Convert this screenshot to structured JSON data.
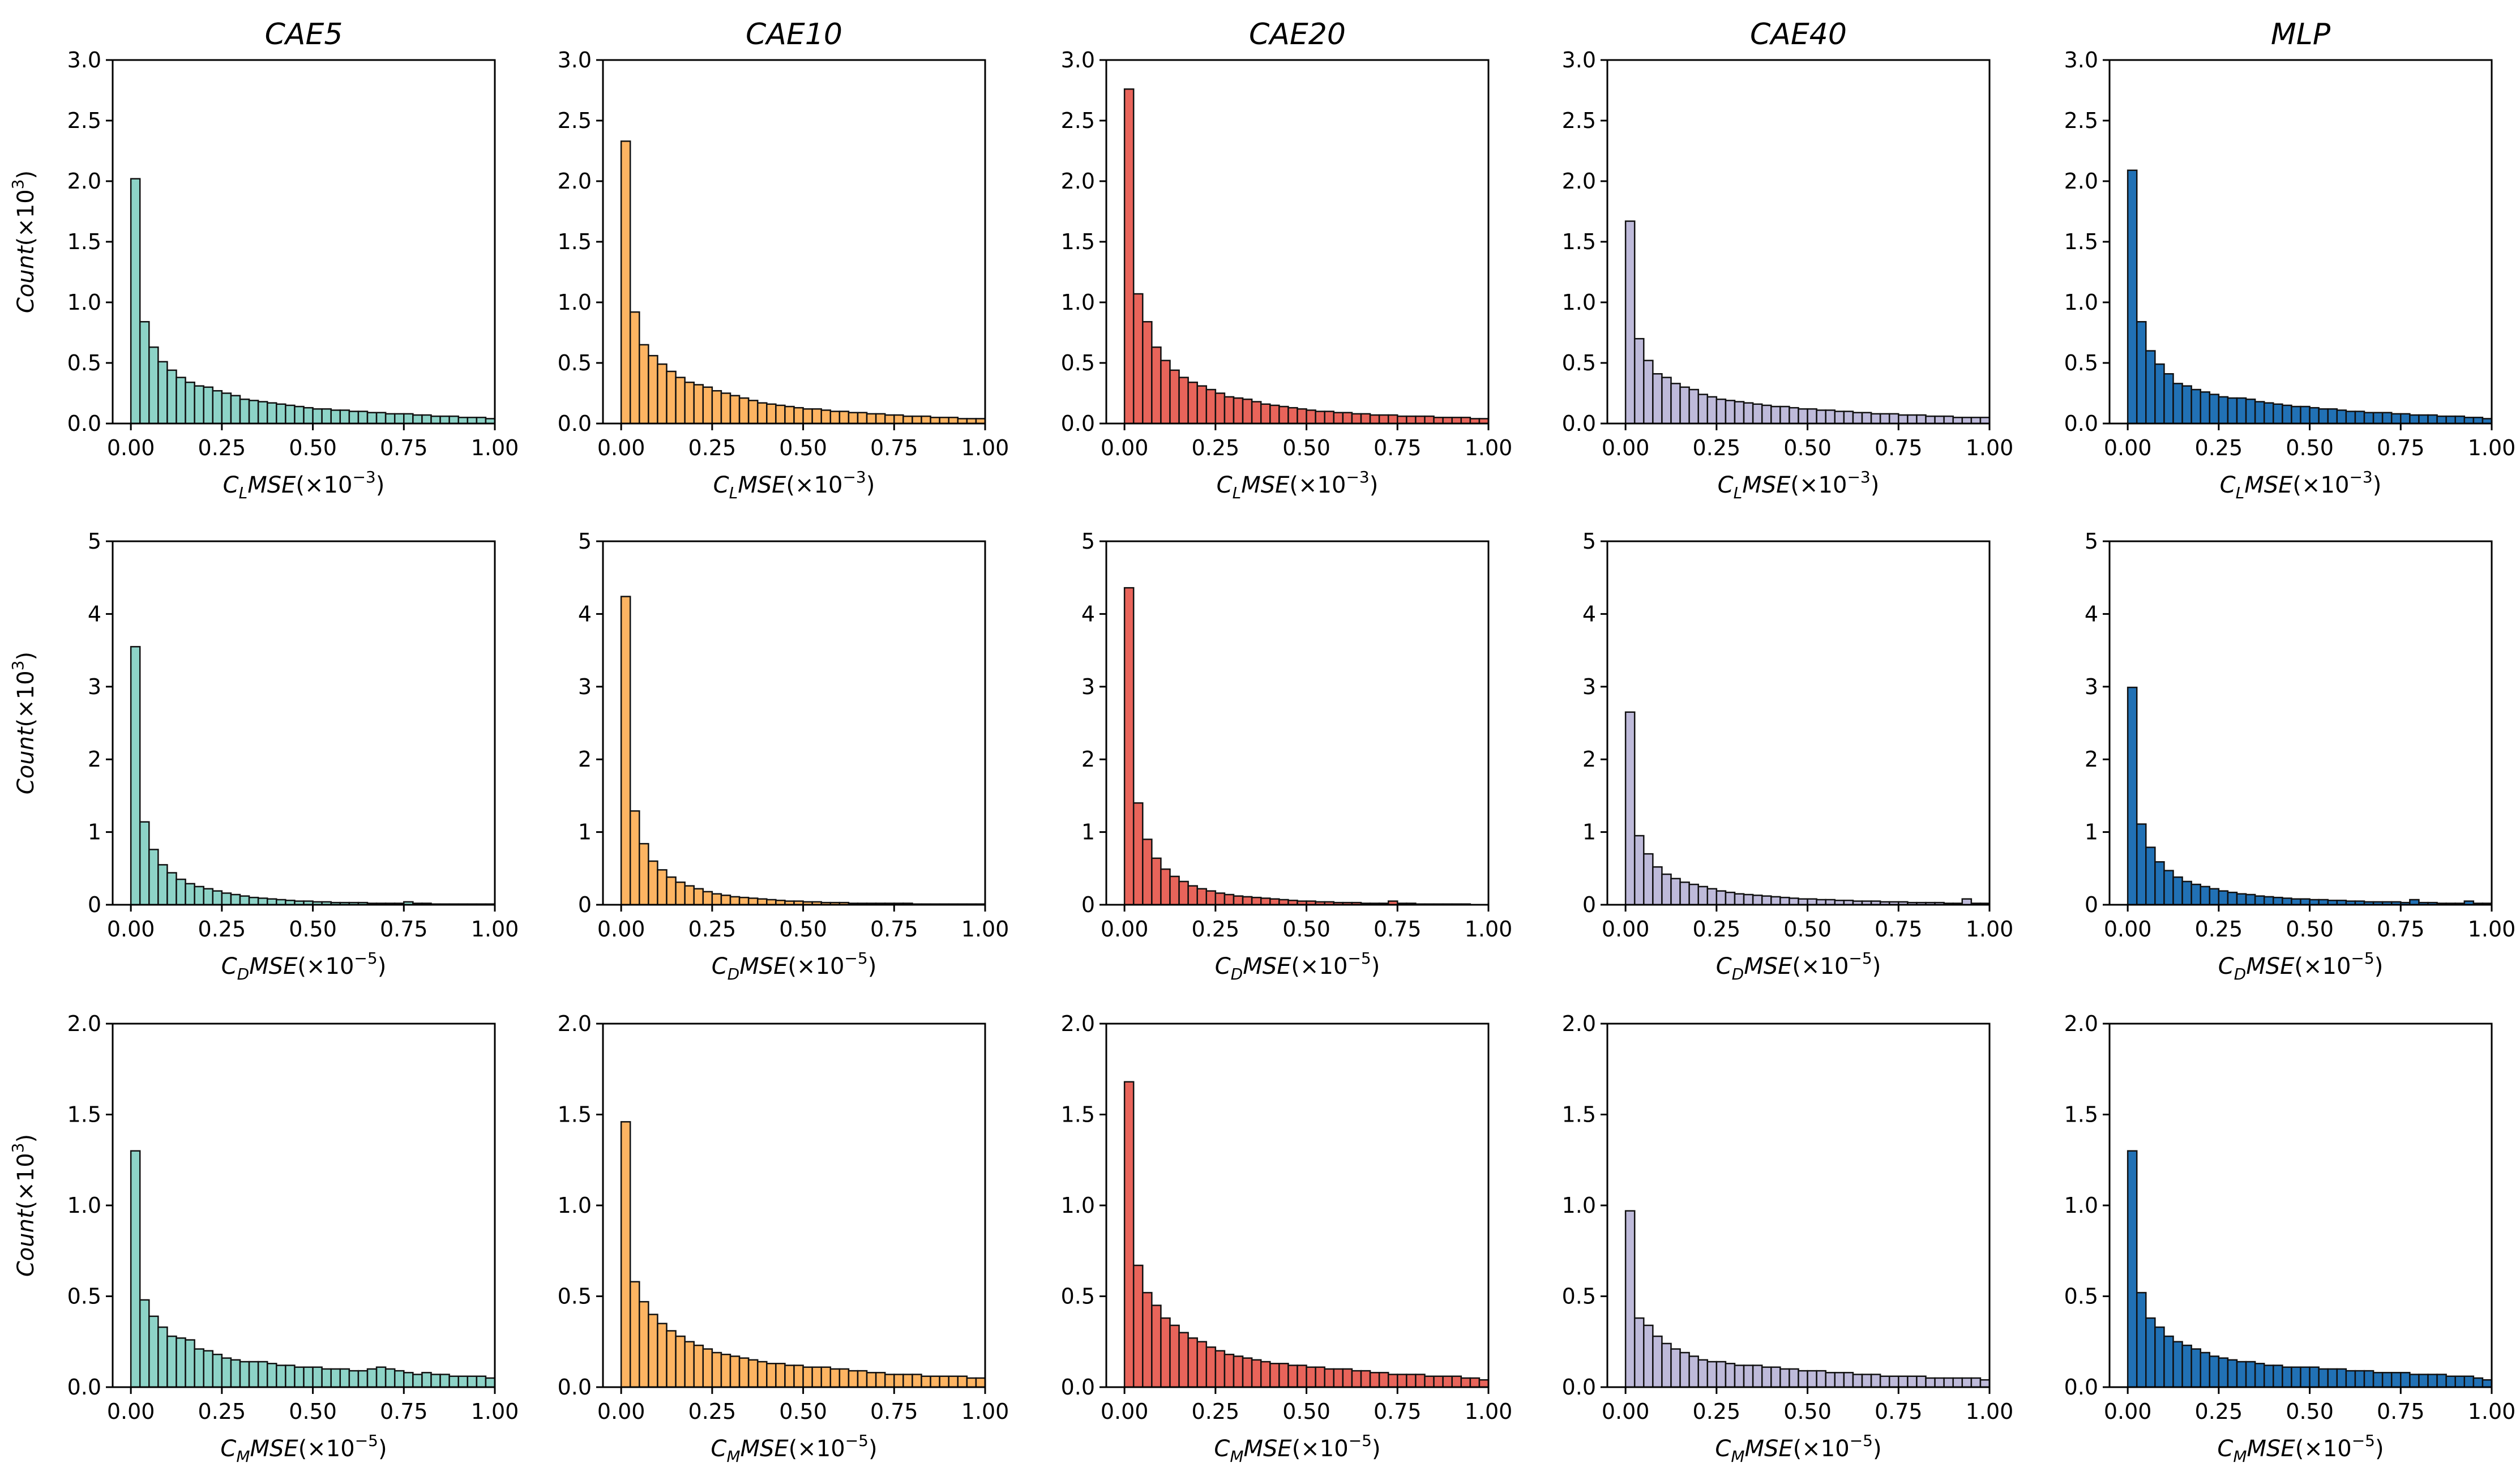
{
  "chart_data": {
    "type": "bar",
    "layout": "grid 3 rows x 5 columns of histograms",
    "columns": [
      {
        "title": "CAE5",
        "color": "#8dd3c7"
      },
      {
        "title": "CAE10",
        "color": "#fdb462"
      },
      {
        "title": "CAE20",
        "color": "#e8645a"
      },
      {
        "title": "CAE40",
        "color": "#bebada"
      },
      {
        "title": "MLP",
        "color": "#2171b5"
      }
    ],
    "rows": [
      {
        "ylabel_base": "Count(",
        "ylabel_exp": "3",
        "xlabel_var": "C",
        "xlabel_sub": "L",
        "xlabel_rest": "MSE(×10",
        "xlabel_exp": "−3",
        "ylim": [
          0,
          3
        ],
        "yticks": [
          "0.0",
          "0.5",
          "1.0",
          "1.5",
          "2.0",
          "2.5",
          "3.0"
        ],
        "xticks": [
          "0.00",
          "0.25",
          "0.50",
          "0.75",
          "1.00"
        ],
        "xlim": [
          -0.05,
          1.0
        ],
        "bins": 40,
        "series": [
          [
            2.02,
            0.84,
            0.63,
            0.51,
            0.44,
            0.38,
            0.34,
            0.31,
            0.3,
            0.27,
            0.25,
            0.23,
            0.2,
            0.19,
            0.18,
            0.17,
            0.16,
            0.15,
            0.14,
            0.13,
            0.12,
            0.12,
            0.11,
            0.11,
            0.1,
            0.1,
            0.09,
            0.09,
            0.08,
            0.08,
            0.08,
            0.07,
            0.07,
            0.06,
            0.06,
            0.06,
            0.05,
            0.05,
            0.05,
            0.04
          ],
          [
            2.33,
            0.92,
            0.65,
            0.56,
            0.49,
            0.43,
            0.38,
            0.34,
            0.32,
            0.3,
            0.27,
            0.25,
            0.23,
            0.21,
            0.19,
            0.17,
            0.16,
            0.15,
            0.14,
            0.13,
            0.12,
            0.12,
            0.11,
            0.1,
            0.1,
            0.09,
            0.09,
            0.08,
            0.08,
            0.07,
            0.07,
            0.06,
            0.06,
            0.06,
            0.05,
            0.05,
            0.05,
            0.04,
            0.04,
            0.04
          ],
          [
            2.76,
            1.07,
            0.84,
            0.63,
            0.52,
            0.44,
            0.38,
            0.34,
            0.31,
            0.28,
            0.25,
            0.22,
            0.21,
            0.2,
            0.18,
            0.16,
            0.15,
            0.14,
            0.13,
            0.12,
            0.11,
            0.1,
            0.1,
            0.09,
            0.09,
            0.08,
            0.08,
            0.07,
            0.07,
            0.07,
            0.06,
            0.06,
            0.06,
            0.06,
            0.05,
            0.05,
            0.05,
            0.05,
            0.04,
            0.04
          ],
          [
            1.67,
            0.7,
            0.52,
            0.41,
            0.38,
            0.33,
            0.3,
            0.28,
            0.24,
            0.22,
            0.2,
            0.19,
            0.18,
            0.17,
            0.16,
            0.15,
            0.14,
            0.14,
            0.13,
            0.12,
            0.12,
            0.11,
            0.11,
            0.1,
            0.1,
            0.09,
            0.09,
            0.08,
            0.08,
            0.08,
            0.07,
            0.07,
            0.07,
            0.06,
            0.06,
            0.06,
            0.05,
            0.05,
            0.05,
            0.05
          ],
          [
            2.09,
            0.84,
            0.6,
            0.49,
            0.41,
            0.33,
            0.31,
            0.28,
            0.26,
            0.24,
            0.22,
            0.21,
            0.21,
            0.2,
            0.18,
            0.17,
            0.16,
            0.15,
            0.14,
            0.14,
            0.13,
            0.12,
            0.12,
            0.11,
            0.1,
            0.1,
            0.09,
            0.09,
            0.09,
            0.08,
            0.08,
            0.07,
            0.07,
            0.07,
            0.06,
            0.06,
            0.06,
            0.05,
            0.05,
            0.04
          ]
        ]
      },
      {
        "ylabel_base": "Count(",
        "ylabel_exp": "3",
        "xlabel_var": "C",
        "xlabel_sub": "D",
        "xlabel_rest": "MSE(×10",
        "xlabel_exp": "−5",
        "ylim": [
          0,
          5
        ],
        "yticks": [
          "0",
          "1",
          "2",
          "3",
          "4",
          "5"
        ],
        "xticks": [
          "0.00",
          "0.25",
          "0.50",
          "0.75",
          "1.00"
        ],
        "xlim": [
          -0.05,
          1.0
        ],
        "bins": 40,
        "series": [
          [
            3.55,
            1.14,
            0.76,
            0.55,
            0.44,
            0.35,
            0.29,
            0.25,
            0.22,
            0.19,
            0.16,
            0.14,
            0.12,
            0.1,
            0.09,
            0.08,
            0.07,
            0.06,
            0.05,
            0.05,
            0.04,
            0.04,
            0.03,
            0.03,
            0.03,
            0.03,
            0.02,
            0.02,
            0.02,
            0.02,
            0.04,
            0.02,
            0.02,
            0.01,
            0.01,
            0.01,
            0.01,
            0.01,
            0.01,
            0.01
          ],
          [
            4.24,
            1.29,
            0.84,
            0.6,
            0.48,
            0.38,
            0.31,
            0.26,
            0.22,
            0.18,
            0.15,
            0.13,
            0.11,
            0.1,
            0.09,
            0.08,
            0.07,
            0.06,
            0.05,
            0.05,
            0.04,
            0.04,
            0.03,
            0.03,
            0.03,
            0.02,
            0.02,
            0.02,
            0.02,
            0.02,
            0.02,
            0.02,
            0.01,
            0.01,
            0.01,
            0.01,
            0.01,
            0.01,
            0.01,
            0.01
          ],
          [
            4.36,
            1.4,
            0.9,
            0.64,
            0.49,
            0.39,
            0.32,
            0.26,
            0.22,
            0.19,
            0.16,
            0.14,
            0.12,
            0.11,
            0.1,
            0.09,
            0.08,
            0.07,
            0.06,
            0.05,
            0.05,
            0.04,
            0.04,
            0.03,
            0.03,
            0.03,
            0.02,
            0.02,
            0.02,
            0.05,
            0.02,
            0.02,
            0.01,
            0.01,
            0.01,
            0.01,
            0.01,
            0.01,
            0.0,
            0.0
          ],
          [
            2.65,
            0.95,
            0.7,
            0.52,
            0.42,
            0.36,
            0.31,
            0.28,
            0.25,
            0.22,
            0.19,
            0.17,
            0.15,
            0.14,
            0.13,
            0.12,
            0.11,
            0.1,
            0.09,
            0.08,
            0.08,
            0.07,
            0.07,
            0.06,
            0.06,
            0.05,
            0.05,
            0.05,
            0.04,
            0.04,
            0.04,
            0.03,
            0.03,
            0.03,
            0.03,
            0.02,
            0.02,
            0.08,
            0.02,
            0.02
          ],
          [
            2.99,
            1.11,
            0.79,
            0.59,
            0.47,
            0.38,
            0.32,
            0.28,
            0.25,
            0.22,
            0.19,
            0.17,
            0.15,
            0.14,
            0.12,
            0.11,
            0.1,
            0.09,
            0.08,
            0.08,
            0.07,
            0.07,
            0.06,
            0.06,
            0.05,
            0.05,
            0.04,
            0.04,
            0.04,
            0.04,
            0.03,
            0.07,
            0.03,
            0.03,
            0.02,
            0.02,
            0.02,
            0.05,
            0.02,
            0.02
          ]
        ]
      },
      {
        "ylabel_base": "Count(",
        "ylabel_exp": "3",
        "xlabel_var": "C",
        "xlabel_sub": "M",
        "xlabel_rest": "MSE(×10",
        "xlabel_exp": "−5",
        "ylim": [
          0,
          2
        ],
        "yticks": [
          "0.0",
          "0.5",
          "1.0",
          "1.5",
          "2.0"
        ],
        "xticks": [
          "0.00",
          "0.25",
          "0.50",
          "0.75",
          "1.00"
        ],
        "xlim": [
          -0.05,
          1.0
        ],
        "bins": 40,
        "series": [
          [
            1.3,
            0.48,
            0.39,
            0.33,
            0.28,
            0.27,
            0.26,
            0.21,
            0.2,
            0.18,
            0.16,
            0.15,
            0.14,
            0.14,
            0.14,
            0.13,
            0.12,
            0.12,
            0.11,
            0.11,
            0.11,
            0.1,
            0.1,
            0.1,
            0.09,
            0.09,
            0.1,
            0.11,
            0.1,
            0.09,
            0.08,
            0.07,
            0.08,
            0.07,
            0.07,
            0.06,
            0.06,
            0.06,
            0.06,
            0.05
          ],
          [
            1.46,
            0.58,
            0.47,
            0.4,
            0.35,
            0.31,
            0.28,
            0.25,
            0.23,
            0.21,
            0.19,
            0.18,
            0.17,
            0.16,
            0.15,
            0.14,
            0.13,
            0.13,
            0.12,
            0.12,
            0.11,
            0.11,
            0.11,
            0.1,
            0.1,
            0.09,
            0.09,
            0.08,
            0.08,
            0.07,
            0.07,
            0.07,
            0.07,
            0.06,
            0.06,
            0.06,
            0.06,
            0.06,
            0.05,
            0.05
          ],
          [
            1.68,
            0.67,
            0.52,
            0.45,
            0.38,
            0.34,
            0.3,
            0.27,
            0.25,
            0.22,
            0.2,
            0.18,
            0.17,
            0.16,
            0.15,
            0.14,
            0.13,
            0.13,
            0.12,
            0.12,
            0.11,
            0.11,
            0.1,
            0.1,
            0.1,
            0.09,
            0.09,
            0.08,
            0.08,
            0.07,
            0.07,
            0.07,
            0.07,
            0.06,
            0.06,
            0.06,
            0.06,
            0.05,
            0.05,
            0.04
          ],
          [
            0.97,
            0.38,
            0.34,
            0.28,
            0.24,
            0.21,
            0.19,
            0.17,
            0.15,
            0.14,
            0.14,
            0.13,
            0.12,
            0.12,
            0.12,
            0.11,
            0.11,
            0.1,
            0.1,
            0.09,
            0.09,
            0.09,
            0.08,
            0.08,
            0.08,
            0.07,
            0.07,
            0.07,
            0.06,
            0.06,
            0.06,
            0.06,
            0.06,
            0.05,
            0.05,
            0.05,
            0.05,
            0.05,
            0.05,
            0.04
          ],
          [
            1.3,
            0.52,
            0.38,
            0.33,
            0.28,
            0.25,
            0.23,
            0.21,
            0.19,
            0.17,
            0.16,
            0.15,
            0.14,
            0.14,
            0.13,
            0.12,
            0.12,
            0.11,
            0.11,
            0.11,
            0.11,
            0.1,
            0.1,
            0.1,
            0.09,
            0.09,
            0.09,
            0.08,
            0.08,
            0.08,
            0.08,
            0.07,
            0.07,
            0.07,
            0.07,
            0.06,
            0.06,
            0.06,
            0.05,
            0.04
          ]
        ]
      }
    ]
  }
}
